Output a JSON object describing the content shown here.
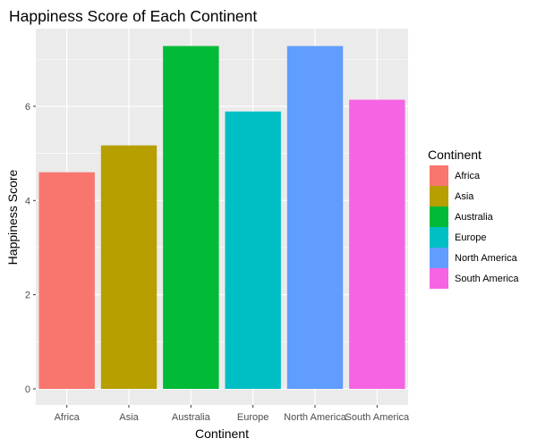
{
  "chart_data": {
    "type": "bar",
    "title": "Happiness Score of Each Continent",
    "xlabel": "Continent",
    "ylabel": "Happiness Score",
    "categories": [
      "Africa",
      "Asia",
      "Australia",
      "Europe",
      "North America",
      "South America"
    ],
    "values": [
      4.6,
      5.17,
      7.28,
      5.89,
      7.28,
      6.14
    ],
    "colors": [
      "#F8766D",
      "#B79F00",
      "#00BA38",
      "#00BFC4",
      "#619CFF",
      "#F564E3"
    ],
    "ylim": [
      0,
      7.65
    ],
    "yticks": [
      0,
      2,
      4,
      6
    ],
    "grid": true,
    "panel_background": "#EBEBEB",
    "legend": {
      "title": "Continent",
      "placement": "right",
      "entries": [
        "Africa",
        "Asia",
        "Australia",
        "Europe",
        "North America",
        "South America"
      ]
    }
  }
}
